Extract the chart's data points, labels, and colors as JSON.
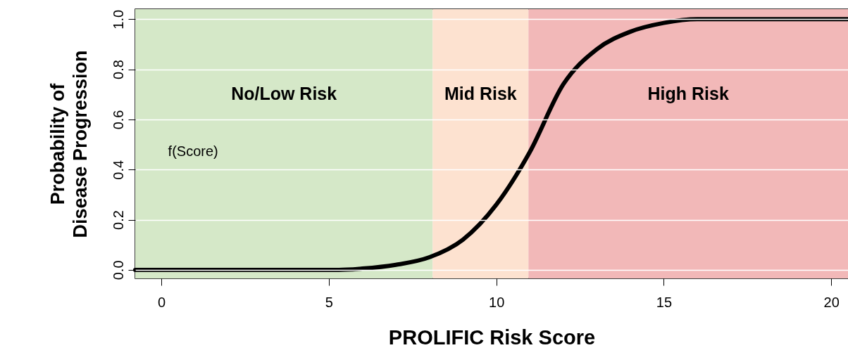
{
  "chart_data": {
    "type": "line",
    "xlabel": "PROLIFIC Risk Score",
    "ylabel": "Probability of\nDisease Progression",
    "x": [
      -0.78,
      5.3,
      6,
      7,
      8,
      9,
      10,
      11,
      12,
      13,
      14,
      15,
      16,
      18,
      20.5
    ],
    "series": [
      {
        "color": "#000000",
        "values": [
          0,
          0,
          0.005,
          0.02,
          0.05,
          0.12,
          0.26,
          0.47,
          0.74,
          0.88,
          0.95,
          0.985,
          1,
          1,
          1
        ]
      }
    ],
    "xlim": [
      -0.78,
      20.5
    ],
    "xticks": [
      0,
      5,
      10,
      15,
      20
    ],
    "ylim": [
      -0.034,
      1.04
    ],
    "yticks": [
      {
        "value": 0,
        "label": "0.0"
      },
      0.2,
      0.4,
      0.6,
      0.8,
      {
        "value": 1,
        "label": "1.0"
      }
    ],
    "grid": "y",
    "line_style": "solid",
    "marker": "none",
    "bands": [
      {
        "axis": "x",
        "from": -0.78,
        "to": 8.1,
        "label": "No/Low Risk",
        "color": "#d5e8c8"
      },
      {
        "axis": "x",
        "from": 8.1,
        "to": 10.96,
        "label": "Mid Risk",
        "color": "#fde2d0"
      },
      {
        "axis": "x",
        "from": 10.96,
        "to": 20.5,
        "label": "High Risk",
        "color": "#f2b8b8"
      }
    ],
    "annotations": [
      "f(Score)"
    ]
  }
}
